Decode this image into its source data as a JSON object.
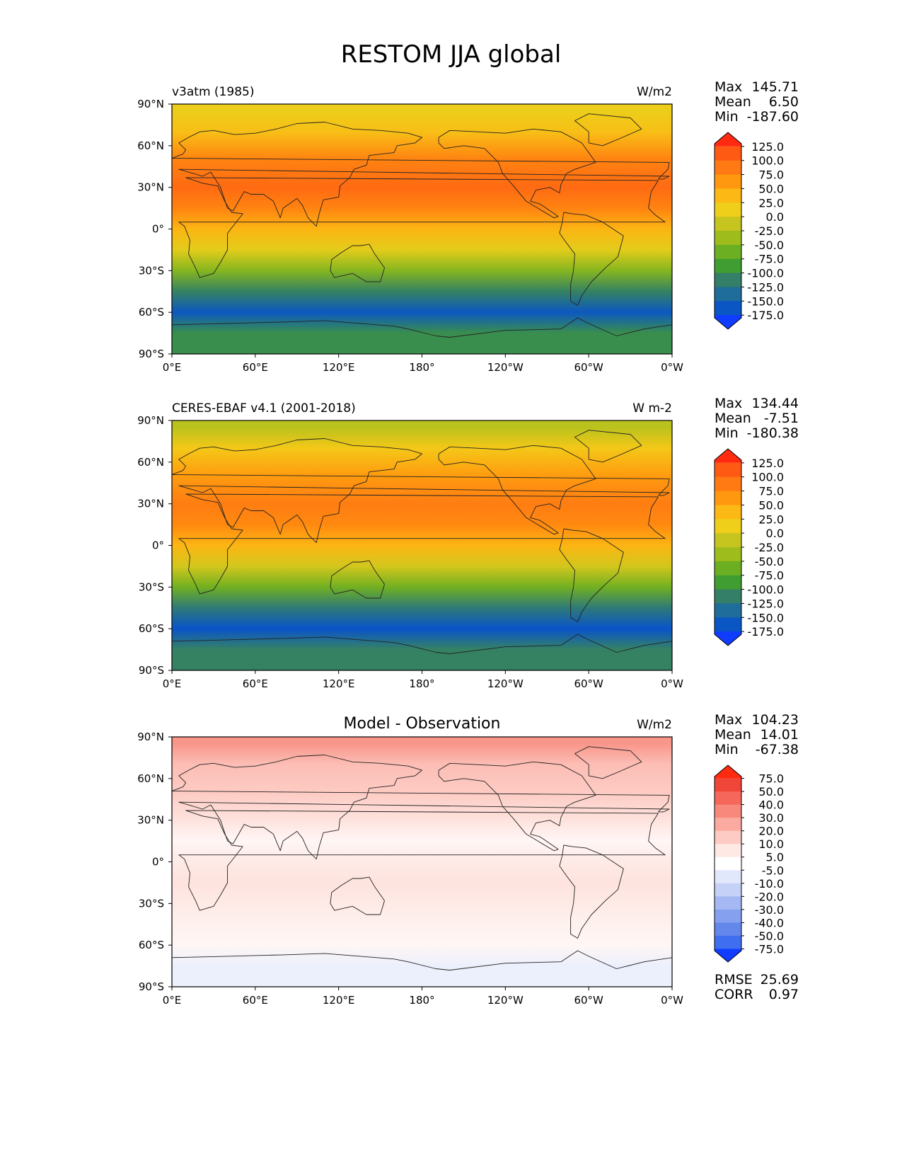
{
  "title": "RESTOM JJA global",
  "x_ticks": [
    "0°E",
    "60°E",
    "120°E",
    "180°",
    "120°W",
    "60°W",
    "0°W"
  ],
  "y_ticks": [
    "90°N",
    "60°N",
    "30°N",
    "0°",
    "30°S",
    "60°S",
    "90°S"
  ],
  "chart_data": [
    {
      "type": "heatmap",
      "map": "global-lat-lon",
      "left_title": "v3atm (1985)",
      "center_title": "",
      "units": "W/m2",
      "xlim": [
        0,
        360
      ],
      "ylim": [
        -90,
        90
      ],
      "stats": {
        "max_label": "Max",
        "max": "145.71",
        "mean_label": "Mean",
        "mean": "6.50",
        "min_label": "Min",
        "min": "-187.60"
      },
      "colorbar": {
        "extend": "both",
        "ticks": [
          "125.0",
          "100.0",
          "75.0",
          "50.0",
          "25.0",
          "0.0",
          "-25.0",
          "-50.0",
          "-75.0",
          "-100.0",
          "-125.0",
          "-150.0",
          "-175.0"
        ],
        "colors": [
          "#ff2a10",
          "#ff5a14",
          "#ff7a12",
          "#ff980e",
          "#fcb814",
          "#f0cf1a",
          "#c6c41e",
          "#9ebd1c",
          "#6caf22",
          "#3f9d32",
          "#347f68",
          "#1f6d9a",
          "#0a56c4",
          "#0f3cff"
        ]
      },
      "zonal_profile": [
        {
          "lat": 85,
          "value": 10
        },
        {
          "lat": 70,
          "value": 30
        },
        {
          "lat": 50,
          "value": 80
        },
        {
          "lat": 30,
          "value": 100
        },
        {
          "lat": 15,
          "value": 80
        },
        {
          "lat": 0,
          "value": 40
        },
        {
          "lat": -15,
          "value": 5
        },
        {
          "lat": -30,
          "value": -50
        },
        {
          "lat": -45,
          "value": -110
        },
        {
          "lat": -60,
          "value": -160
        },
        {
          "lat": -75,
          "value": -100
        }
      ]
    },
    {
      "type": "heatmap",
      "map": "global-lat-lon",
      "left_title": "CERES-EBAF v4.1 (2001-2018)",
      "center_title": "",
      "units": "W m-2",
      "xlim": [
        0,
        360
      ],
      "ylim": [
        -90,
        90
      ],
      "stats": {
        "max_label": "Max",
        "max": "134.44",
        "mean_label": "Mean",
        "mean": "-7.51",
        "min_label": "Min",
        "min": "-180.38"
      },
      "colorbar": {
        "extend": "both",
        "ticks": [
          "125.0",
          "100.0",
          "75.0",
          "50.0",
          "25.0",
          "0.0",
          "-25.0",
          "-50.0",
          "-75.0",
          "-100.0",
          "-125.0",
          "-150.0",
          "-175.0"
        ],
        "colors": [
          "#ff2a10",
          "#ff5a14",
          "#ff7a12",
          "#ff980e",
          "#fcb814",
          "#f0cf1a",
          "#c6c41e",
          "#9ebd1c",
          "#6caf22",
          "#3f9d32",
          "#347f68",
          "#1f6d9a",
          "#0a56c4",
          "#0f3cff"
        ]
      },
      "zonal_profile": [
        {
          "lat": 85,
          "value": -20
        },
        {
          "lat": 70,
          "value": 20
        },
        {
          "lat": 50,
          "value": 60
        },
        {
          "lat": 30,
          "value": 85
        },
        {
          "lat": 15,
          "value": 75
        },
        {
          "lat": 0,
          "value": 40
        },
        {
          "lat": -15,
          "value": -5
        },
        {
          "lat": -30,
          "value": -60
        },
        {
          "lat": -45,
          "value": -120
        },
        {
          "lat": -60,
          "value": -165
        },
        {
          "lat": -75,
          "value": -110
        }
      ]
    },
    {
      "type": "heatmap",
      "map": "global-lat-lon",
      "left_title": "",
      "center_title": "Model - Observation",
      "units": "W/m2",
      "xlim": [
        0,
        360
      ],
      "ylim": [
        -90,
        90
      ],
      "stats": {
        "max_label": "Max",
        "max": "104.23",
        "mean_label": "Mean",
        "mean": "14.01",
        "min_label": "Min",
        "min": "-67.38"
      },
      "extra_stats": {
        "rmse_label": "RMSE",
        "rmse": "25.69",
        "corr_label": "CORR",
        "corr": "0.97"
      },
      "colorbar": {
        "extend": "both",
        "ticks": [
          "75.0",
          "50.0",
          "40.0",
          "30.0",
          "20.0",
          "10.0",
          "5.0",
          "-5.0",
          "-10.0",
          "-20.0",
          "-30.0",
          "-40.0",
          "-50.0",
          "-75.0"
        ],
        "colors": [
          "#ff2a10",
          "#f0463a",
          "#f4675a",
          "#f8887c",
          "#fbaa9f",
          "#fdcbc3",
          "#fee9e5",
          "#ffffff",
          "#e2e8fb",
          "#c5d1f7",
          "#a6b8f3",
          "#85a0ee",
          "#6387ea",
          "#3f6ef0",
          "#0f3cff"
        ]
      },
      "zonal_profile": [
        {
          "lat": 85,
          "value": 45
        },
        {
          "lat": 70,
          "value": 30
        },
        {
          "lat": 50,
          "value": 25
        },
        {
          "lat": 30,
          "value": 15
        },
        {
          "lat": 15,
          "value": 5
        },
        {
          "lat": 0,
          "value": 12
        },
        {
          "lat": -15,
          "value": 15
        },
        {
          "lat": -30,
          "value": 12
        },
        {
          "lat": -45,
          "value": 8
        },
        {
          "lat": -60,
          "value": 5
        },
        {
          "lat": -75,
          "value": -8
        }
      ]
    }
  ]
}
